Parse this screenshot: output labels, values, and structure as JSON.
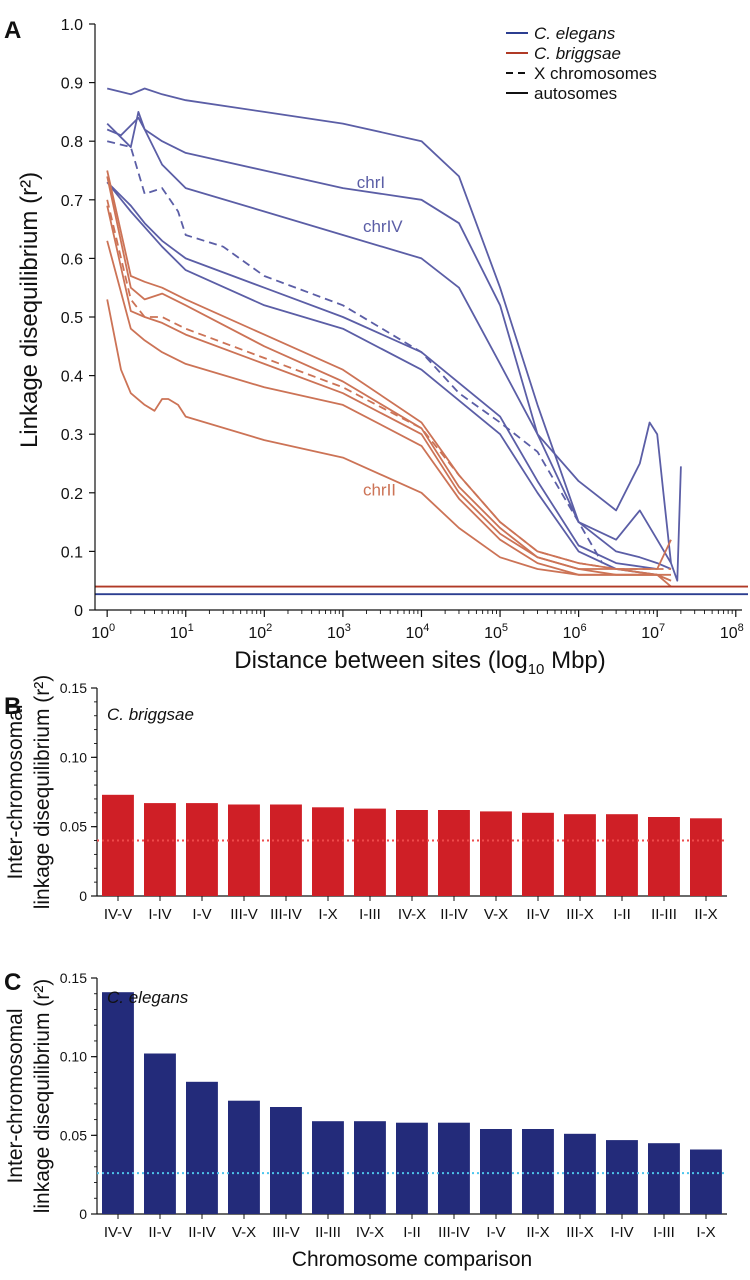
{
  "panel_letters": [
    "A",
    "B",
    "C"
  ],
  "colors": {
    "elegans": "#5b5ea6",
    "briggsae": "#cc7356",
    "elegans_baseline": "#2c3e90",
    "briggsae_baseline": "#b03a26",
    "bar_briggsae": "#cf1f26",
    "bar_elegans": "#232b7a",
    "dotted_briggsae": "#ee4a4a",
    "dotted_elegans": "#4dc3ea"
  },
  "chart_data": [
    {
      "type": "line",
      "panel": "A",
      "xlabel": "Distance between sites (log10 Mbp)",
      "xlabel_parts": {
        "main": "Distance between sites (log",
        "sub": "10",
        "unit": " Mbp)"
      },
      "ylabel": "Linkage disequilibrium (r²)",
      "xscale": "log",
      "xlim": [
        0.7,
        120000000
      ],
      "ylim": [
        0,
        1.0
      ],
      "x_tick_values": [
        1,
        10,
        100,
        1000,
        10000,
        100000,
        1000000,
        10000000,
        100000000
      ],
      "x_tick_bases": [
        "10",
        "10",
        "10",
        "10",
        "10",
        "10",
        "10",
        "10",
        "10"
      ],
      "x_tick_exps": [
        "0",
        "1",
        "2",
        "3",
        "4",
        "5",
        "6",
        "7",
        "8"
      ],
      "y_ticks": [
        0,
        0.1,
        0.2,
        0.3,
        0.4,
        0.5,
        0.6,
        0.7,
        0.8,
        0.9,
        1.0
      ],
      "y_tick_labels": [
        "0",
        "0.1",
        "0.2",
        "0.3",
        "0.4",
        "0.5",
        "0.6",
        "0.7",
        "0.8",
        "0.9",
        "1.0"
      ],
      "legend": {
        "position": "top-right",
        "entries": [
          {
            "label": "C. elegans",
            "italic": true,
            "style": "solid",
            "color_key": "elegans_baseline"
          },
          {
            "label": "C. briggsae",
            "italic": true,
            "style": "solid",
            "color_key": "briggsae_baseline"
          },
          {
            "label": "X chromosomes",
            "italic": false,
            "style": "dashed",
            "color_key": "black"
          },
          {
            "label": "autosomes",
            "italic": false,
            "style": "solid",
            "color_key": "black"
          }
        ]
      },
      "annotations": [
        {
          "text": "chrI",
          "x": 1500,
          "y": 0.72,
          "color_key": "elegans"
        },
        {
          "text": "chrIV",
          "x": 1800,
          "y": 0.645,
          "color_key": "elegans"
        },
        {
          "text": "chrII",
          "x": 1800,
          "y": 0.195,
          "color_key": "briggsae"
        }
      ],
      "baselines": [
        {
          "name": "C. briggsae",
          "y": 0.04,
          "color_key": "briggsae_baseline"
        },
        {
          "name": "C. elegans",
          "y": 0.027,
          "color_key": "elegans_baseline"
        }
      ],
      "series": [
        {
          "species": "C. elegans",
          "dashed": false,
          "x": [
            1,
            2,
            3,
            5,
            10,
            100,
            1000,
            10000,
            30000,
            100000,
            300000,
            1000000,
            3000000,
            6000000,
            10000000,
            15000000
          ],
          "y": [
            0.89,
            0.88,
            0.89,
            0.88,
            0.87,
            0.85,
            0.83,
            0.8,
            0.74,
            0.55,
            0.35,
            0.15,
            0.1,
            0.09,
            0.08,
            0.07
          ]
        },
        {
          "species": "C. elegans",
          "dashed": false,
          "x": [
            1,
            2,
            2.5,
            3,
            5,
            10,
            100,
            1000,
            10000,
            30000,
            100000,
            300000,
            1000000,
            3000000,
            6000000,
            10000000,
            15000000
          ],
          "y": [
            0.83,
            0.79,
            0.85,
            0.82,
            0.8,
            0.78,
            0.75,
            0.72,
            0.7,
            0.66,
            0.52,
            0.3,
            0.15,
            0.12,
            0.17,
            0.12,
            0.08
          ]
        },
        {
          "species": "C. elegans",
          "dashed": false,
          "x": [
            1,
            1.5,
            2.5,
            3,
            5,
            10,
            100,
            1000,
            10000,
            30000,
            100000,
            300000,
            1000000,
            3000000,
            6000000,
            8000000,
            10000000,
            12000000,
            15000000,
            18000000,
            20000000
          ],
          "y": [
            0.82,
            0.81,
            0.84,
            0.82,
            0.76,
            0.72,
            0.68,
            0.64,
            0.6,
            0.55,
            0.42,
            0.3,
            0.22,
            0.17,
            0.25,
            0.32,
            0.3,
            0.2,
            0.08,
            0.05,
            0.245
          ]
        },
        {
          "species": "C. elegans",
          "dashed": true,
          "x": [
            1,
            2,
            3,
            5,
            8,
            10,
            30,
            100,
            1000,
            10000,
            30000,
            100000,
            300000,
            1000000,
            2000000
          ],
          "y": [
            0.8,
            0.79,
            0.71,
            0.72,
            0.68,
            0.64,
            0.62,
            0.57,
            0.52,
            0.44,
            0.37,
            0.32,
            0.27,
            0.15,
            0.08
          ]
        },
        {
          "species": "C. elegans",
          "dashed": false,
          "x": [
            1,
            2,
            3,
            5,
            10,
            100,
            1000,
            10000,
            100000,
            300000,
            1000000,
            3000000,
            10000000
          ],
          "y": [
            0.73,
            0.69,
            0.66,
            0.63,
            0.6,
            0.55,
            0.5,
            0.44,
            0.33,
            0.22,
            0.11,
            0.08,
            0.07
          ]
        },
        {
          "species": "C. elegans",
          "dashed": false,
          "x": [
            1,
            2,
            5,
            10,
            100,
            1000,
            10000,
            100000,
            300000,
            1000000,
            3000000,
            10000000
          ],
          "y": [
            0.73,
            0.68,
            0.62,
            0.58,
            0.52,
            0.48,
            0.41,
            0.3,
            0.2,
            0.1,
            0.07,
            0.06
          ]
        },
        {
          "species": "C. briggsae",
          "dashed": false,
          "x": [
            1,
            2,
            3,
            5,
            10,
            100,
            1000,
            10000,
            30000,
            100000,
            300000,
            1000000,
            3000000,
            10000000,
            15000000
          ],
          "y": [
            0.75,
            0.57,
            0.56,
            0.55,
            0.53,
            0.47,
            0.41,
            0.32,
            0.23,
            0.15,
            0.1,
            0.08,
            0.07,
            0.07,
            0.12
          ]
        },
        {
          "species": "C. briggsae",
          "dashed": false,
          "x": [
            1,
            2,
            3,
            5,
            10,
            100,
            1000,
            10000,
            30000,
            100000,
            300000,
            1000000,
            3000000,
            10000000,
            15000000
          ],
          "y": [
            0.74,
            0.55,
            0.53,
            0.54,
            0.52,
            0.45,
            0.39,
            0.31,
            0.21,
            0.14,
            0.09,
            0.07,
            0.07,
            0.06,
            0.06
          ]
        },
        {
          "species": "C. briggsae",
          "dashed": true,
          "x": [
            1,
            2,
            3,
            5,
            10,
            100,
            1000,
            10000,
            30000,
            100000,
            300000,
            1000000,
            3000000,
            10000000,
            15000000
          ],
          "y": [
            0.7,
            0.53,
            0.5,
            0.5,
            0.48,
            0.43,
            0.38,
            0.31,
            0.23,
            0.15,
            0.1,
            0.08,
            0.07,
            0.07,
            0.07
          ]
        },
        {
          "species": "C. briggsae",
          "dashed": false,
          "x": [
            1,
            2,
            3,
            5,
            10,
            100,
            1000,
            10000,
            30000,
            100000,
            300000,
            1000000,
            3000000,
            10000000,
            15000000
          ],
          "y": [
            0.69,
            0.51,
            0.5,
            0.49,
            0.47,
            0.42,
            0.37,
            0.3,
            0.2,
            0.13,
            0.09,
            0.07,
            0.06,
            0.06,
            0.05
          ]
        },
        {
          "species": "C. briggsae",
          "dashed": false,
          "x": [
            1,
            2,
            3,
            5,
            10,
            100,
            1000,
            10000,
            30000,
            100000,
            300000,
            1000000,
            3000000,
            10000000,
            15000000
          ],
          "y": [
            0.63,
            0.48,
            0.46,
            0.44,
            0.42,
            0.38,
            0.35,
            0.28,
            0.19,
            0.12,
            0.08,
            0.06,
            0.06,
            0.06,
            0.05
          ]
        },
        {
          "species": "C. briggsae",
          "dashed": false,
          "x": [
            1,
            1.5,
            2,
            3,
            4,
            5,
            6,
            8,
            10,
            100,
            1000,
            10000,
            30000,
            100000,
            300000,
            1000000,
            3000000,
            10000000,
            15000000
          ],
          "y": [
            0.53,
            0.41,
            0.37,
            0.35,
            0.34,
            0.36,
            0.36,
            0.35,
            0.33,
            0.29,
            0.26,
            0.2,
            0.14,
            0.09,
            0.07,
            0.06,
            0.06,
            0.06,
            0.04
          ]
        }
      ]
    },
    {
      "type": "bar",
      "panel": "B",
      "species_label": "C. briggsae",
      "ylabel_lines": [
        "Inter-chromosomal",
        "linkage disequilibrium (r²)"
      ],
      "ylim": [
        0,
        0.15
      ],
      "y_ticks": [
        0,
        0.05,
        0.1,
        0.15
      ],
      "y_tick_labels": [
        "0",
        "0.05",
        "0.10",
        "0.15"
      ],
      "categories": [
        "IV-V",
        "I-IV",
        "I-V",
        "III-V",
        "III-IV",
        "I-X",
        "I-III",
        "IV-X",
        "II-IV",
        "V-X",
        "II-V",
        "III-X",
        "I-II",
        "II-III",
        "II-X"
      ],
      "values": [
        0.073,
        0.067,
        0.067,
        0.066,
        0.066,
        0.064,
        0.063,
        0.062,
        0.062,
        0.061,
        0.06,
        0.059,
        0.059,
        0.057,
        0.056
      ],
      "reference_line": 0.04
    },
    {
      "type": "bar",
      "panel": "C",
      "species_label": "C. elegans",
      "ylabel_lines": [
        "Inter-chromosomal",
        "linkage disequilibrium (r²)"
      ],
      "xlabel": "Chromosome comparison",
      "ylim": [
        0,
        0.15
      ],
      "y_ticks": [
        0,
        0.05,
        0.1,
        0.15
      ],
      "y_tick_labels": [
        "0",
        "0.05",
        "0.10",
        "0.15"
      ],
      "categories": [
        "IV-V",
        "II-V",
        "II-IV",
        "V-X",
        "III-V",
        "II-III",
        "IV-X",
        "I-II",
        "III-IV",
        "I-V",
        "II-X",
        "III-X",
        "I-IV",
        "I-III",
        "I-X"
      ],
      "values": [
        0.141,
        0.102,
        0.084,
        0.072,
        0.068,
        0.059,
        0.059,
        0.058,
        0.058,
        0.054,
        0.054,
        0.051,
        0.047,
        0.045,
        0.041
      ],
      "reference_line": 0.026
    }
  ]
}
